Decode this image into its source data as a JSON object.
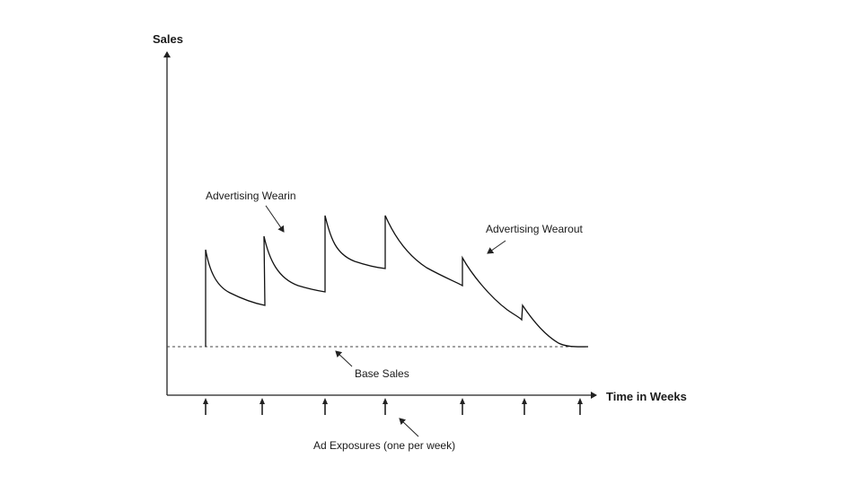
{
  "diagram": {
    "y_axis_title": "Sales",
    "x_axis_title": "Time in Weeks",
    "annotations": {
      "wearin": "Advertising Wearin",
      "wearout": "Advertising Wearout",
      "base": "Base Sales",
      "exposures": "Ad Exposures (one per week)"
    },
    "exposure_count": 7
  },
  "chart_data": {
    "type": "line",
    "title": "",
    "ylabel": "Sales",
    "xlabel": "Time in Weeks",
    "grid": false,
    "series": [
      {
        "name": "Base Sales",
        "style": "dashed",
        "values": "constant baseline"
      }
    ]
  }
}
